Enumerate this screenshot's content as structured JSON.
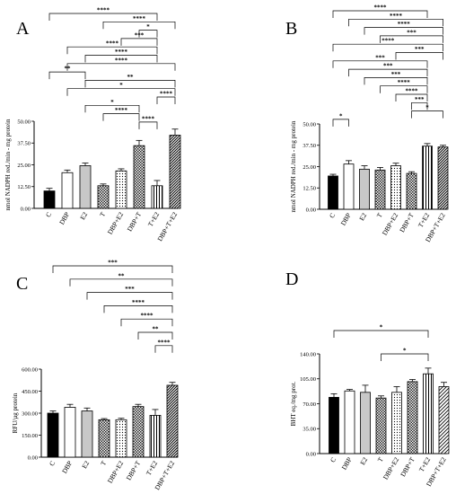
{
  "chart_data": [
    {
      "type": "bar",
      "panel_label": "A",
      "ylabel": "nmol NADPH red./min - mg protein",
      "categories": [
        "C",
        "DBP",
        "E2",
        "T",
        "DBP+E2",
        "DBP+T",
        "T+E2",
        "DBP+T+E2"
      ],
      "ylim": [
        0,
        50
      ],
      "yticks": [
        "0.00",
        "12.50",
        "25.00",
        "37.50",
        "50.00"
      ],
      "values": [
        10,
        20.5,
        24.5,
        13,
        21.5,
        36,
        13,
        42
      ],
      "errors": [
        1.5,
        1.5,
        1.5,
        1,
        1.2,
        3,
        3,
        3.5
      ],
      "significance": [
        {
          "from": 0,
          "to": 6,
          "label": "****"
        },
        {
          "from": 3,
          "to": 7,
          "label": "****"
        },
        {
          "from": 5,
          "to": 6,
          "label": "*"
        },
        {
          "from": 4,
          "to": 6,
          "label": "***"
        },
        {
          "from": 1,
          "to": 6,
          "label": "****"
        },
        {
          "from": 2,
          "to": 6,
          "label": "****"
        },
        {
          "from": 1,
          "to": 7,
          "label": "****"
        },
        {
          "from": 0,
          "to": 2,
          "label": "**"
        },
        {
          "from": 2,
          "to": 7,
          "label": "**"
        },
        {
          "from": 1,
          "to": 7,
          "label": "*"
        },
        {
          "from": 6,
          "to": 7,
          "label": "****"
        },
        {
          "from": 2,
          "to": 5,
          "label": "*"
        },
        {
          "from": 3,
          "to": 5,
          "label": "****"
        },
        {
          "from": 5,
          "to": 6,
          "label": "****"
        }
      ]
    },
    {
      "type": "bar",
      "panel_label": "B",
      "ylabel": "nmol NADPH red./min - mg protein",
      "categories": [
        "C",
        "DBP",
        "E2",
        "T",
        "DBP+E2",
        "DBP+T",
        "T+E2",
        "DBP+T+E2"
      ],
      "ylim": [
        0,
        50
      ],
      "yticks": [
        "0.00",
        "12.50",
        "25.00",
        "37.50",
        "50.00"
      ],
      "values": [
        19.5,
        26.5,
        23.5,
        23,
        25.5,
        21,
        37,
        36.5
      ],
      "errors": [
        1,
        2,
        2,
        1.5,
        1.5,
        1,
        1.5,
        1
      ],
      "significance": [
        {
          "from": 0,
          "to": 6,
          "label": "****"
        },
        {
          "from": 1,
          "to": 7,
          "label": "****"
        },
        {
          "from": 2,
          "to": 7,
          "label": "****"
        },
        {
          "from": 3,
          "to": 7,
          "label": "***"
        },
        {
          "from": 0,
          "to": 7,
          "label": "****"
        },
        {
          "from": 4,
          "to": 7,
          "label": "***"
        },
        {
          "from": 0,
          "to": 6,
          "label": "***"
        },
        {
          "from": 1,
          "to": 6,
          "label": "***"
        },
        {
          "from": 2,
          "to": 6,
          "label": "***"
        },
        {
          "from": 3,
          "to": 6,
          "label": "****"
        },
        {
          "from": 4,
          "to": 6,
          "label": "****"
        },
        {
          "from": 5,
          "to": 6,
          "label": "***"
        },
        {
          "from": 5,
          "to": 7,
          "label": "*"
        },
        {
          "from": 0,
          "to": 1,
          "label": "*"
        }
      ]
    },
    {
      "type": "bar",
      "panel_label": "C",
      "ylabel": "RFU/µg protein",
      "categories": [
        "C",
        "DBP",
        "E2",
        "T",
        "DBP+E2",
        "DBP+T",
        "T+E2",
        "DBP+T+E2"
      ],
      "ylim": [
        0,
        600
      ],
      "yticks": [
        "0.00",
        "150.00",
        "300.00",
        "450.00",
        "600.00"
      ],
      "values": [
        300,
        340,
        315,
        255,
        255,
        345,
        285,
        490
      ],
      "errors": [
        15,
        20,
        20,
        8,
        10,
        15,
        40,
        20
      ],
      "significance": [
        {
          "from": 0,
          "to": 7,
          "label": "***"
        },
        {
          "from": 1,
          "to": 7,
          "label": "**"
        },
        {
          "from": 2,
          "to": 7,
          "label": "***"
        },
        {
          "from": 3,
          "to": 7,
          "label": "****"
        },
        {
          "from": 4,
          "to": 7,
          "label": "****"
        },
        {
          "from": 5,
          "to": 7,
          "label": "**"
        },
        {
          "from": 6,
          "to": 7,
          "label": "****"
        }
      ]
    },
    {
      "type": "bar",
      "panel_label": "D",
      "ylabel": "BHT eq./mg prot.",
      "categories": [
        "C",
        "DBP",
        "E2",
        "T",
        "DBP+E2",
        "DBP+T",
        "T+E2",
        "DBP+T+E2"
      ],
      "ylim": [
        0,
        140
      ],
      "yticks": [
        "0.00",
        "35.00",
        "70.00",
        "105.00",
        "140.00"
      ],
      "values": [
        79,
        88,
        86,
        78,
        86,
        101,
        112,
        94
      ],
      "errors": [
        5,
        2,
        10,
        3,
        8,
        3,
        8,
        6
      ],
      "significance": [
        {
          "from": 0,
          "to": 6,
          "label": "*"
        },
        {
          "from": 3,
          "to": 6,
          "label": "*"
        }
      ]
    }
  ]
}
